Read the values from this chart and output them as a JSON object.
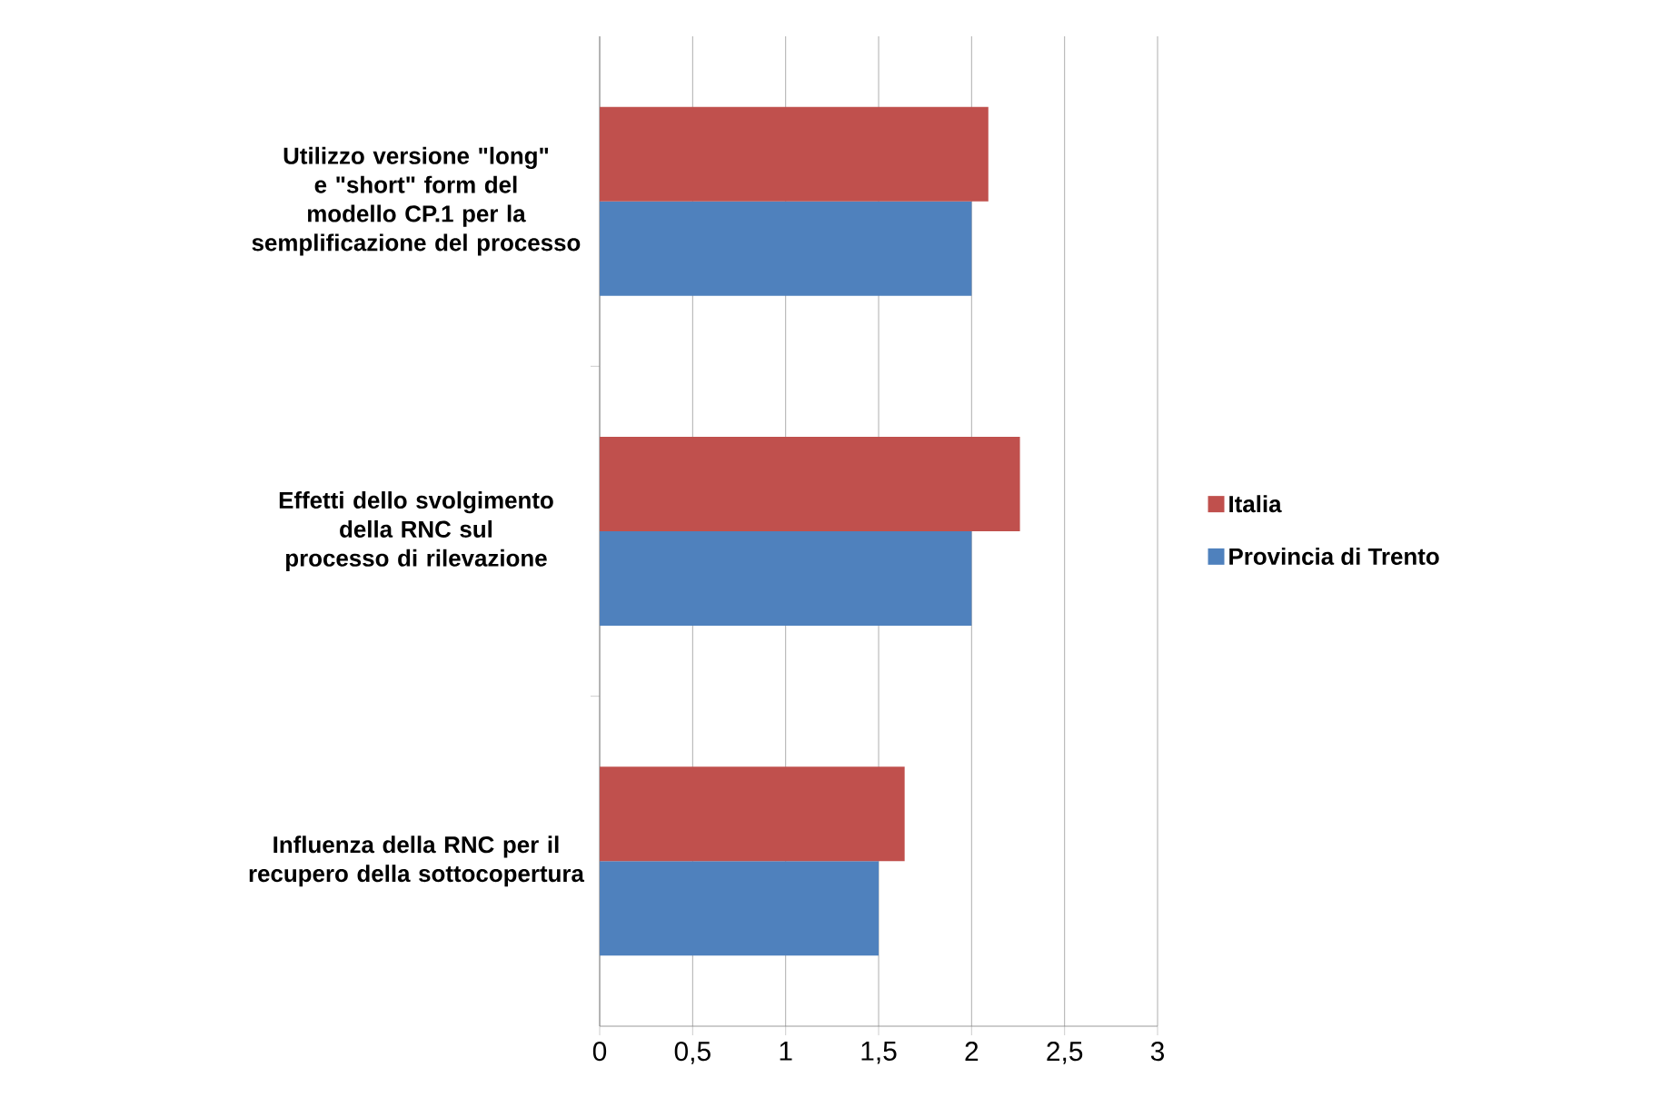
{
  "chart_data": {
    "type": "bar",
    "orientation": "horizontal",
    "categories": [
      "Utilizzo versione \"long\" e \"short\" form del modello CP.1 per la semplificazione del processo",
      "Effetti dello svolgimento della RNC sul processo di rilevazione",
      "Influenza della RNC per il recupero della sottocopertura"
    ],
    "series": [
      {
        "name": "Italia",
        "color": "#c0504d",
        "values": [
          2.09,
          2.26,
          1.64
        ]
      },
      {
        "name": "Provincia di Trento",
        "color": "#4f81bd",
        "values": [
          2,
          2,
          1.5
        ]
      }
    ],
    "xlim": [
      0,
      3
    ],
    "xticks": [
      0,
      {
        "value": 0.5,
        "label": "0,5"
      },
      1,
      {
        "value": 1.5,
        "label": "1,5"
      },
      2,
      {
        "value": 2.5,
        "label": "2,5"
      },
      3
    ],
    "grid": "x",
    "legend": "right"
  }
}
